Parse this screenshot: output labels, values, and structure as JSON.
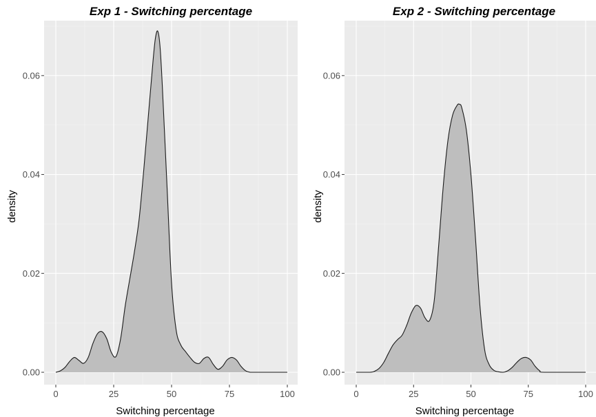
{
  "colors": {
    "panel_bg": "#ebebeb",
    "grid_major": "#ffffff",
    "grid_minor": "#f4f4f4",
    "fill": "#bebebe",
    "stroke": "#1a1a1a",
    "tick": "#333333"
  },
  "chart_data": [
    {
      "type": "area",
      "title": "Exp 1 - Switching percentage",
      "xlabel": "Switching percentage",
      "ylabel": "density",
      "xlim": [
        0,
        100
      ],
      "ylim": [
        0,
        0.07
      ],
      "x_ticks": [
        0,
        25,
        50,
        75,
        100
      ],
      "x_tick_labels": [
        "0",
        "25",
        "50",
        "75",
        "100"
      ],
      "y_ticks": [
        0,
        0.02,
        0.04,
        0.06
      ],
      "y_tick_labels": [
        "0.00",
        "0.02",
        "0.04",
        "0.06"
      ],
      "grid": true,
      "series": [
        {
          "x": [
            0,
            2,
            4,
            6,
            8,
            10,
            12,
            14,
            16,
            18,
            20,
            22,
            24,
            26,
            28,
            30,
            32,
            34,
            36,
            38,
            40,
            42,
            43,
            44,
            45,
            46,
            48,
            50,
            52,
            54,
            56,
            58,
            60,
            62,
            64,
            66,
            68,
            70,
            72,
            74,
            76,
            78,
            80,
            82,
            84,
            86,
            100
          ],
          "y": [
            0.0,
            0.0003,
            0.001,
            0.0022,
            0.003,
            0.0024,
            0.0018,
            0.003,
            0.0058,
            0.0078,
            0.0082,
            0.0068,
            0.004,
            0.0032,
            0.0068,
            0.0135,
            0.019,
            0.0245,
            0.031,
            0.041,
            0.052,
            0.063,
            0.0675,
            0.069,
            0.066,
            0.058,
            0.038,
            0.018,
            0.0085,
            0.0055,
            0.0042,
            0.003,
            0.002,
            0.0018,
            0.0028,
            0.003,
            0.0016,
            0.0006,
            0.0012,
            0.0025,
            0.003,
            0.0025,
            0.0012,
            0.0003,
            0.0,
            0.0,
            0.0
          ]
        }
      ]
    },
    {
      "type": "area",
      "title": "Exp 2 - Switching percentage",
      "xlabel": "Switching percentage",
      "ylabel": "density",
      "xlim": [
        0,
        100
      ],
      "ylim": [
        0,
        0.07
      ],
      "x_ticks": [
        0,
        25,
        50,
        75,
        100
      ],
      "x_tick_labels": [
        "0",
        "25",
        "50",
        "75",
        "100"
      ],
      "y_ticks": [
        0,
        0.02,
        0.04,
        0.06
      ],
      "y_tick_labels": [
        "0.00",
        "0.02",
        "0.04",
        "0.06"
      ],
      "grid": true,
      "series": [
        {
          "x": [
            0,
            6,
            8,
            10,
            12,
            14,
            16,
            18,
            20,
            22,
            24,
            26,
            28,
            30,
            32,
            34,
            36,
            38,
            40,
            42,
            44,
            45,
            46,
            48,
            50,
            52,
            54,
            56,
            58,
            60,
            62,
            64,
            66,
            68,
            70,
            72,
            74,
            76,
            78,
            80,
            82,
            100
          ],
          "y": [
            0.0,
            0.0,
            0.0002,
            0.0008,
            0.002,
            0.0038,
            0.0055,
            0.0066,
            0.0075,
            0.0095,
            0.012,
            0.0135,
            0.013,
            0.011,
            0.0105,
            0.0145,
            0.026,
            0.038,
            0.047,
            0.052,
            0.054,
            0.0542,
            0.0535,
            0.049,
            0.04,
            0.027,
            0.013,
            0.0045,
            0.0015,
            0.0004,
            0.0001,
            0.0,
            0.0003,
            0.001,
            0.002,
            0.0028,
            0.003,
            0.0025,
            0.0012,
            0.0003,
            0.0,
            0.0
          ]
        }
      ]
    }
  ]
}
